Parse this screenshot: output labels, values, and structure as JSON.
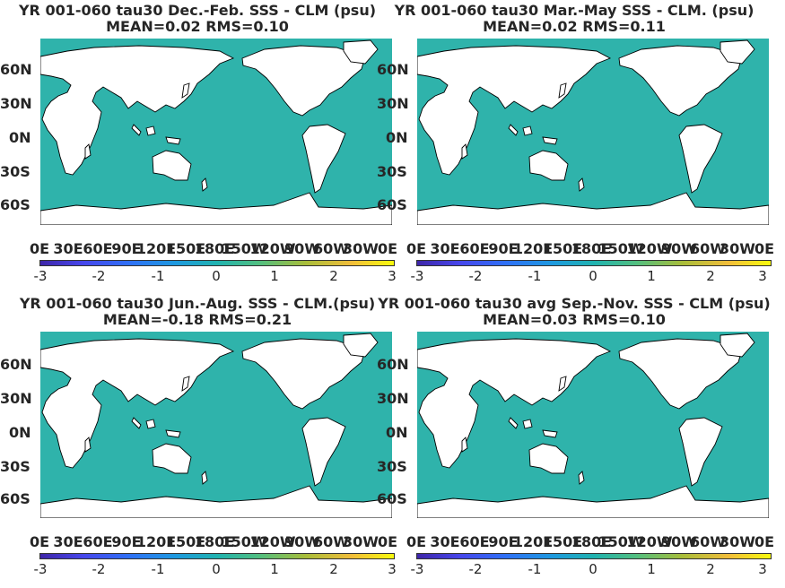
{
  "panels": [
    {
      "title_line1": "YR 001-060 tau30  Dec.-Feb. SSS - CLM (psu)",
      "title_line2": "MEAN=0.02   RMS=0.10"
    },
    {
      "title_line1": "YR 001-060 tau30 Mar.-May SSS - CLM. (psu)",
      "title_line2": "MEAN=0.02   RMS=0.11"
    },
    {
      "title_line1": "YR 001-060 tau30 Jun.-Aug. SSS - CLM.(psu)",
      "title_line2": "MEAN=-0.18   RMS=0.21"
    },
    {
      "title_line1": "YR 001-060 tau30 avg Sep.-Nov. SSS - CLM (psu)",
      "title_line2": "MEAN=0.03   RMS=0.10"
    }
  ],
  "lat_labels": [
    "60N",
    "30N",
    "0N",
    "30S",
    "60S"
  ],
  "lon_labels": [
    "0E",
    "30E",
    "60E",
    "90E",
    "120E",
    "150E",
    "180E",
    "150W",
    "120W",
    "90W",
    "60W",
    "30W",
    "0E"
  ],
  "colorbar": {
    "ticks": [
      "-3",
      "-2",
      "-1",
      "0",
      "1",
      "2",
      "3"
    ],
    "colormap": "parula",
    "range": [
      -3,
      3
    ]
  },
  "colors": {
    "ocean": "#2fb3ab",
    "land": "#ffffff",
    "coast": "#000000"
  }
}
